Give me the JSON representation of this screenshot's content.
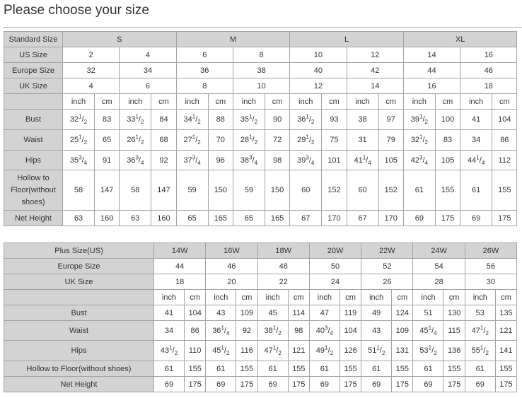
{
  "title": "Please choose your size",
  "standard_table": {
    "header_label": "Standard Size",
    "groups": [
      "S",
      "M",
      "L",
      "XL"
    ],
    "us_label": "US Size",
    "us": [
      "2",
      "4",
      "6",
      "8",
      "10",
      "12",
      "14",
      "16"
    ],
    "europe_label": "Europe Size",
    "europe": [
      "32",
      "34",
      "36",
      "38",
      "40",
      "42",
      "44",
      "46"
    ],
    "uk_label": "UK Size",
    "uk": [
      "4",
      "6",
      "8",
      "10",
      "12",
      "14",
      "16",
      "18"
    ],
    "units": [
      "inch",
      "cm"
    ],
    "rows": [
      {
        "label": "Bust",
        "values": [
          "32 1/2",
          "83",
          "33 1/2",
          "84",
          "34 1/2",
          "88",
          "35 1/2",
          "90",
          "36 1/2",
          "93",
          "38",
          "97",
          "39 1/2",
          "100",
          "41",
          "104"
        ]
      },
      {
        "label": "Waist",
        "values": [
          "25 1/2",
          "65",
          "26 1/2",
          "68",
          "27 1/2",
          "70",
          "28 1/2",
          "72",
          "29 1/2",
          "75",
          "31",
          "79",
          "32 1/2",
          "83",
          "34",
          "86"
        ]
      },
      {
        "label": "Hips",
        "values": [
          "35 3/4",
          "91",
          "36 3/4",
          "92",
          "37 3/4",
          "96",
          "38 3/4",
          "98",
          "39 3/4",
          "101",
          "41 1/4",
          "105",
          "42 3/4",
          "105",
          "44 1/4",
          "112"
        ]
      },
      {
        "label": "Hollow to Floor(without shoes)",
        "values": [
          "58",
          "147",
          "58",
          "147",
          "59",
          "150",
          "59",
          "150",
          "60",
          "152",
          "60",
          "152",
          "61",
          "155",
          "61",
          "155"
        ]
      },
      {
        "label": "Net Height",
        "values": [
          "63",
          "160",
          "63",
          "160",
          "65",
          "165",
          "65",
          "165",
          "67",
          "170",
          "67",
          "170",
          "69",
          "175",
          "69",
          "175"
        ]
      }
    ]
  },
  "plus_table": {
    "header_label": "Plus Size(US)",
    "sizes": [
      "14W",
      "16W",
      "18W",
      "20W",
      "22W",
      "24W",
      "26W"
    ],
    "europe_label": "Europe Size",
    "europe": [
      "44",
      "46",
      "48",
      "50",
      "52",
      "54",
      "56"
    ],
    "uk_label": "UK Size",
    "uk": [
      "18",
      "20",
      "22",
      "24",
      "26",
      "28",
      "30"
    ],
    "units": [
      "inch",
      "cm"
    ],
    "rows": [
      {
        "label": "Bust",
        "values": [
          "41",
          "104",
          "43",
          "109",
          "45",
          "114",
          "47",
          "119",
          "49",
          "124",
          "51",
          "130",
          "53",
          "135"
        ]
      },
      {
        "label": "Waist",
        "values": [
          "34",
          "86",
          "36 1/4",
          "92",
          "38 1/2",
          "98",
          "40 3/4",
          "104",
          "43",
          "109",
          "45 1/4",
          "115",
          "47 1/2",
          "121"
        ]
      },
      {
        "label": "Hips",
        "values": [
          "43 1/2",
          "110",
          "45 1/2",
          "116",
          "47 1/2",
          "121",
          "49 1/2",
          "126",
          "51 1/2",
          "131",
          "53 1/2",
          "136",
          "55 1/2",
          "141"
        ]
      },
      {
        "label": "Hollow to Floor(without shoes)",
        "values": [
          "61",
          "155",
          "61",
          "155",
          "61",
          "155",
          "61",
          "155",
          "61",
          "155",
          "61",
          "155",
          "61",
          "155"
        ]
      },
      {
        "label": "Net Height",
        "values": [
          "69",
          "175",
          "69",
          "175",
          "69",
          "175",
          "69",
          "175",
          "69",
          "175",
          "69",
          "175",
          "69",
          "175"
        ]
      }
    ]
  },
  "colors": {
    "header_bg": "#d3d3d3",
    "border": "#a3a3a3"
  }
}
